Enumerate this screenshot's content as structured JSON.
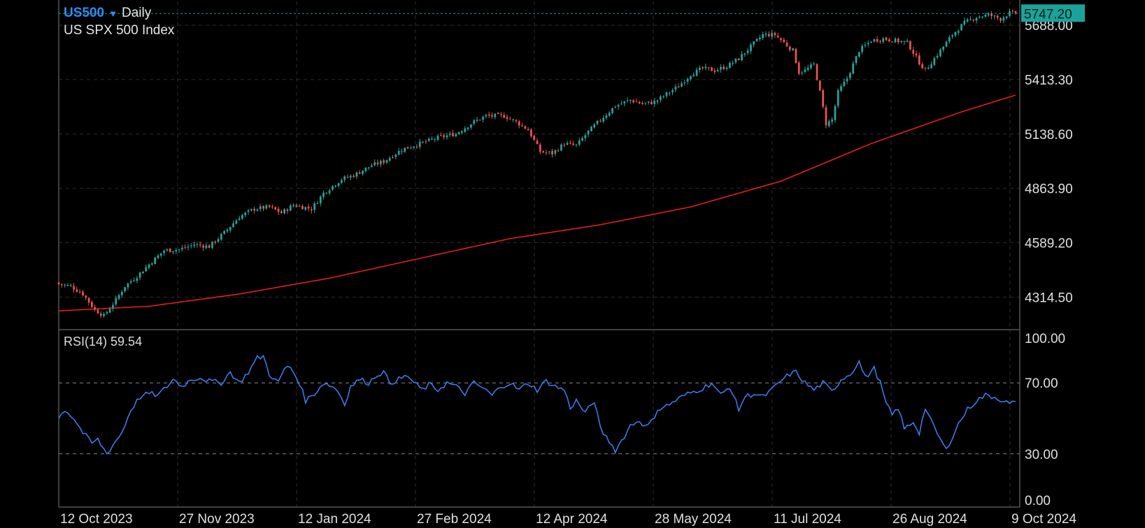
{
  "header": {
    "symbol": "US500",
    "dropdown_icon": "caret-down-icon",
    "timeframe": "Daily",
    "name": "US SPX 500 Index",
    "last_price": "5747.20"
  },
  "rsi": {
    "label": "RSI(14)",
    "value": "59.54"
  },
  "colors": {
    "background": "#000000",
    "up": "#26a69a",
    "down": "#ef5350",
    "ma": "#e0201a",
    "rsi": "#3b82f6",
    "grid": "#2e2e2e",
    "price_tag": "#1aa39a",
    "symbol": "#2f8df5"
  },
  "chart_data": [
    {
      "type": "candlestick",
      "price_axis_ticks": [
        "5688.00",
        "5413.30",
        "5138.60",
        "4863.90",
        "4589.20",
        "4314.50"
      ],
      "x_tick_labels": [
        "12 Oct 2023",
        "27 Nov 2023",
        "12 Jan 2024",
        "27 Feb 2024",
        "12 Apr 2024",
        "28 May 2024",
        "11 Jul 2024",
        "26 Aug 2024",
        "9 Oct 2024"
      ],
      "ylim": [
        4150,
        5780
      ],
      "grid": true,
      "current_price": 5747.2,
      "close_waypoints": [
        [
          0,
          4380
        ],
        [
          4,
          4370
        ],
        [
          8,
          4330
        ],
        [
          12,
          4250
        ],
        [
          15,
          4220
        ],
        [
          19,
          4300
        ],
        [
          22,
          4370
        ],
        [
          26,
          4420
        ],
        [
          30,
          4480
        ],
        [
          35,
          4550
        ],
        [
          40,
          4555
        ],
        [
          45,
          4580
        ],
        [
          50,
          4570
        ],
        [
          55,
          4640
        ],
        [
          60,
          4720
        ],
        [
          65,
          4760
        ],
        [
          70,
          4770
        ],
        [
          74,
          4740
        ],
        [
          78,
          4780
        ],
        [
          84,
          4760
        ],
        [
          88,
          4840
        ],
        [
          94,
          4910
        ],
        [
          98,
          4930
        ],
        [
          104,
          4980
        ],
        [
          108,
          5000
        ],
        [
          114,
          5060
        ],
        [
          120,
          5090
        ],
        [
          126,
          5120
        ],
        [
          132,
          5140
        ],
        [
          138,
          5200
        ],
        [
          142,
          5230
        ],
        [
          148,
          5230
        ],
        [
          152,
          5200
        ],
        [
          156,
          5160
        ],
        [
          160,
          5050
        ],
        [
          164,
          5040
        ],
        [
          168,
          5090
        ],
        [
          172,
          5080
        ],
        [
          176,
          5150
        ],
        [
          180,
          5210
        ],
        [
          185,
          5280
        ],
        [
          190,
          5310
        ],
        [
          194,
          5290
        ],
        [
          198,
          5300
        ],
        [
          202,
          5340
        ],
        [
          206,
          5380
        ],
        [
          210,
          5440
        ],
        [
          214,
          5470
        ],
        [
          218,
          5460
        ],
        [
          222,
          5480
        ],
        [
          226,
          5520
        ],
        [
          230,
          5580
        ],
        [
          234,
          5640
        ],
        [
          238,
          5640
        ],
        [
          241,
          5600
        ],
        [
          244,
          5560
        ],
        [
          246,
          5450
        ],
        [
          248,
          5460
        ],
        [
          251,
          5490
        ],
        [
          253,
          5350
        ],
        [
          255,
          5190
        ],
        [
          257,
          5210
        ],
        [
          259,
          5350
        ],
        [
          262,
          5420
        ],
        [
          266,
          5560
        ],
        [
          270,
          5610
        ],
        [
          274,
          5620
        ],
        [
          278,
          5610
        ],
        [
          282,
          5600
        ],
        [
          286,
          5500
        ],
        [
          288,
          5460
        ],
        [
          290,
          5500
        ],
        [
          293,
          5560
        ],
        [
          297,
          5640
        ],
        [
          301,
          5700
        ],
        [
          305,
          5730
        ],
        [
          309,
          5740
        ],
        [
          313,
          5720
        ],
        [
          316,
          5750
        ],
        [
          318,
          5747
        ]
      ],
      "moving_average": {
        "waypoints": [
          [
            0,
            4245
          ],
          [
            30,
            4268
          ],
          [
            60,
            4330
          ],
          [
            90,
            4410
          ],
          [
            120,
            4510
          ],
          [
            150,
            4610
          ],
          [
            180,
            4680
          ],
          [
            210,
            4770
          ],
          [
            240,
            4900
          ],
          [
            270,
            5090
          ],
          [
            300,
            5250
          ],
          [
            318,
            5335
          ]
        ]
      }
    },
    {
      "type": "line",
      "ylim": [
        0,
        100
      ],
      "y_tick_labels": [
        "100.00",
        "70.00",
        "30.00",
        "0.00"
      ],
      "levels": [
        70,
        30
      ],
      "current_value": 59.54,
      "waypoints": [
        [
          0,
          50
        ],
        [
          2,
          55
        ],
        [
          5,
          50
        ],
        [
          8,
          42
        ],
        [
          11,
          36
        ],
        [
          13,
          38
        ],
        [
          16,
          30
        ],
        [
          18,
          35
        ],
        [
          21,
          42
        ],
        [
          24,
          55
        ],
        [
          27,
          62
        ],
        [
          30,
          64
        ],
        [
          33,
          63
        ],
        [
          36,
          68
        ],
        [
          38,
          72
        ],
        [
          41,
          68
        ],
        [
          44,
          72
        ],
        [
          47,
          73
        ],
        [
          50,
          71
        ],
        [
          54,
          70
        ],
        [
          57,
          76
        ],
        [
          60,
          70
        ],
        [
          63,
          76
        ],
        [
          66,
          84
        ],
        [
          68,
          85
        ],
        [
          70,
          75
        ],
        [
          73,
          70
        ],
        [
          75,
          78
        ],
        [
          77,
          79
        ],
        [
          80,
          70
        ],
        [
          82,
          60
        ],
        [
          85,
          64
        ],
        [
          88,
          70
        ],
        [
          91,
          68
        ],
        [
          93,
          65
        ],
        [
          95,
          58
        ],
        [
          97,
          68
        ],
        [
          100,
          72
        ],
        [
          103,
          70
        ],
        [
          106,
          75
        ],
        [
          108,
          76
        ],
        [
          110,
          70
        ],
        [
          113,
          72
        ],
        [
          116,
          74
        ],
        [
          118,
          70
        ],
        [
          121,
          66
        ],
        [
          123,
          69
        ],
        [
          126,
          66
        ],
        [
          129,
          70
        ],
        [
          132,
          68
        ],
        [
          135,
          64
        ],
        [
          138,
          70
        ],
        [
          141,
          67
        ],
        [
          144,
          63
        ],
        [
          147,
          68
        ],
        [
          150,
          70
        ],
        [
          153,
          66
        ],
        [
          156,
          70
        ],
        [
          159,
          66
        ],
        [
          162,
          71
        ],
        [
          165,
          68
        ],
        [
          168,
          66
        ],
        [
          170,
          56
        ],
        [
          172,
          60
        ],
        [
          175,
          53
        ],
        [
          178,
          60
        ],
        [
          180,
          44
        ],
        [
          183,
          37
        ],
        [
          185,
          32
        ],
        [
          188,
          40
        ],
        [
          190,
          46
        ],
        [
          193,
          49
        ],
        [
          195,
          45
        ],
        [
          197,
          48
        ],
        [
          199,
          55
        ],
        [
          202,
          57
        ],
        [
          205,
          60
        ],
        [
          208,
          63
        ],
        [
          211,
          65
        ],
        [
          214,
          67
        ],
        [
          217,
          70
        ],
        [
          220,
          63
        ],
        [
          223,
          68
        ],
        [
          226,
          55
        ],
        [
          228,
          62
        ],
        [
          231,
          64
        ],
        [
          234,
          62
        ],
        [
          237,
          66
        ],
        [
          240,
          71
        ],
        [
          243,
          75
        ],
        [
          245,
          76
        ],
        [
          248,
          70
        ],
        [
          251,
          66
        ],
        [
          254,
          70
        ],
        [
          257,
          65
        ],
        [
          260,
          72
        ],
        [
          263,
          75
        ],
        [
          266,
          82
        ],
        [
          268,
          73
        ],
        [
          271,
          78
        ],
        [
          273,
          70
        ],
        [
          275,
          58
        ],
        [
          277,
          52
        ],
        [
          279,
          56
        ],
        [
          281,
          44
        ],
        [
          284,
          48
        ],
        [
          286,
          42
        ],
        [
          288,
          56
        ],
        [
          290,
          48
        ],
        [
          293,
          38
        ],
        [
          295,
          32
        ],
        [
          297,
          40
        ],
        [
          299,
          47
        ],
        [
          302,
          55
        ],
        [
          305,
          60
        ],
        [
          308,
          63
        ],
        [
          311,
          62
        ],
        [
          314,
          60
        ],
        [
          316,
          58
        ],
        [
          318,
          59.5
        ]
      ]
    }
  ]
}
